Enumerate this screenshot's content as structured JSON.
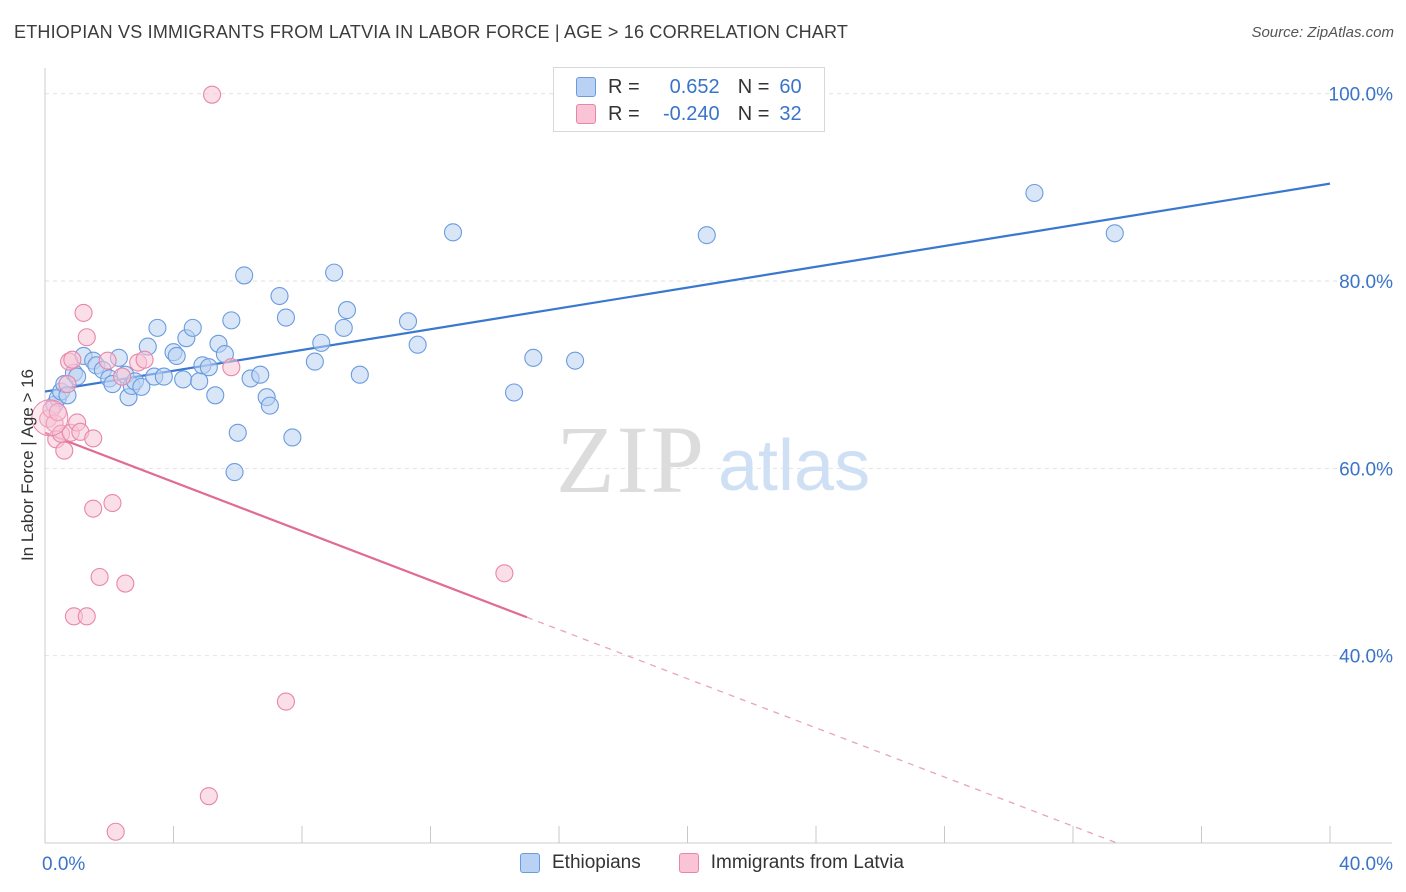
{
  "title": "ETHIOPIAN VS IMMIGRANTS FROM LATVIA IN LABOR FORCE | AGE > 16 CORRELATION CHART",
  "source": "Source: ZipAtlas.com",
  "watermark": {
    "zip": "ZIP",
    "atlas": "atlas"
  },
  "legend": {
    "rows": [
      {
        "r_label": "R =",
        "r_value": "0.652",
        "n_label": "N =",
        "n_value": "60"
      },
      {
        "r_label": "R =",
        "r_value": "-0.240",
        "n_label": "N =",
        "n_value": "32"
      }
    ]
  },
  "chart_data": {
    "type": "scatter",
    "title": "ETHIOPIAN VS IMMIGRANTS FROM LATVIA IN LABOR FORCE | AGE > 16 CORRELATION CHART",
    "xlabel": "",
    "ylabel": "In Labor Force | Age > 16",
    "xlim": [
      0,
      40
    ],
    "ylim": [
      20,
      102
    ],
    "x_tick_labels": [
      "0.0%",
      "40.0%"
    ],
    "y_ticks": [
      40,
      60,
      80,
      100
    ],
    "y_tick_labels": [
      "40.0%",
      "60.0%",
      "80.0%",
      "100.0%"
    ],
    "grid": true,
    "legend_position": "top-center",
    "series": [
      {
        "name": "Ethiopians",
        "color": "#6a9be0",
        "fill": "#b9d1f3",
        "points": [
          [
            0.3,
            66.8
          ],
          [
            0.4,
            67.5
          ],
          [
            0.5,
            68.2
          ],
          [
            0.6,
            69.0
          ],
          [
            0.7,
            67.8
          ],
          [
            0.9,
            70.2
          ],
          [
            1.0,
            69.8
          ],
          [
            1.2,
            72.0
          ],
          [
            1.5,
            71.5
          ],
          [
            1.6,
            71.0
          ],
          [
            1.8,
            70.5
          ],
          [
            2.0,
            69.6
          ],
          [
            2.1,
            69.0
          ],
          [
            2.3,
            71.8
          ],
          [
            2.5,
            70.0
          ],
          [
            2.6,
            67.6
          ],
          [
            2.7,
            68.8
          ],
          [
            2.8,
            69.3
          ],
          [
            3.0,
            68.7
          ],
          [
            3.2,
            73.0
          ],
          [
            3.4,
            69.8
          ],
          [
            3.5,
            75.0
          ],
          [
            3.7,
            69.8
          ],
          [
            4.0,
            72.4
          ],
          [
            4.1,
            72.0
          ],
          [
            4.3,
            69.5
          ],
          [
            4.4,
            73.9
          ],
          [
            4.6,
            75.0
          ],
          [
            4.8,
            69.3
          ],
          [
            4.9,
            71.0
          ],
          [
            5.1,
            70.8
          ],
          [
            5.3,
            67.8
          ],
          [
            5.4,
            73.3
          ],
          [
            5.6,
            72.2
          ],
          [
            5.8,
            75.8
          ],
          [
            5.9,
            59.6
          ],
          [
            6.0,
            63.8
          ],
          [
            6.2,
            80.6
          ],
          [
            6.4,
            69.6
          ],
          [
            6.7,
            70.0
          ],
          [
            6.9,
            67.6
          ],
          [
            7.0,
            66.7
          ],
          [
            7.3,
            78.4
          ],
          [
            7.5,
            76.1
          ],
          [
            7.7,
            63.3
          ],
          [
            8.4,
            71.4
          ],
          [
            8.6,
            73.4
          ],
          [
            9.0,
            80.9
          ],
          [
            9.3,
            75.0
          ],
          [
            9.4,
            76.9
          ],
          [
            9.8,
            70.0
          ],
          [
            11.3,
            75.7
          ],
          [
            11.6,
            73.2
          ],
          [
            12.7,
            85.2
          ],
          [
            14.6,
            68.1
          ],
          [
            15.2,
            71.8
          ],
          [
            16.5,
            71.5
          ],
          [
            20.6,
            84.9
          ],
          [
            30.8,
            89.4
          ],
          [
            33.3,
            85.1
          ]
        ],
        "trend": {
          "x": [
            0,
            40
          ],
          "y": [
            68.2,
            90.4
          ],
          "style": "solid"
        }
      },
      {
        "name": "Immigrants from Latvia",
        "color": "#e886a8",
        "fill": "#f8c4d6",
        "points": [
          [
            0.1,
            65.3
          ],
          [
            0.2,
            66.3
          ],
          [
            0.3,
            64.8
          ],
          [
            0.35,
            63.1
          ],
          [
            0.4,
            66.0
          ],
          [
            0.5,
            63.7
          ],
          [
            0.6,
            61.9
          ],
          [
            0.7,
            69.0
          ],
          [
            0.75,
            71.4
          ],
          [
            0.8,
            63.8
          ],
          [
            0.85,
            71.6
          ],
          [
            0.9,
            44.2
          ],
          [
            1.0,
            64.9
          ],
          [
            1.1,
            63.9
          ],
          [
            1.2,
            76.6
          ],
          [
            1.3,
            44.2
          ],
          [
            1.3,
            74.0
          ],
          [
            1.5,
            63.2
          ],
          [
            1.5,
            55.7
          ],
          [
            1.7,
            48.4
          ],
          [
            2.1,
            56.3
          ],
          [
            2.2,
            21.2
          ],
          [
            2.4,
            69.8
          ],
          [
            2.5,
            47.7
          ],
          [
            2.9,
            71.3
          ],
          [
            3.1,
            71.6
          ],
          [
            5.1,
            25.0
          ],
          [
            5.2,
            99.9
          ],
          [
            5.8,
            70.8
          ],
          [
            7.5,
            35.1
          ],
          [
            14.3,
            48.8
          ],
          [
            1.95,
            71.5
          ]
        ],
        "trend": {
          "x": [
            0,
            15
          ],
          "y": [
            63.8,
            44.1
          ],
          "style": "solid"
        },
        "trend_extension": {
          "x": [
            15,
            40
          ],
          "y": [
            44.1,
            11.3
          ],
          "style": "dashed"
        }
      }
    ]
  }
}
